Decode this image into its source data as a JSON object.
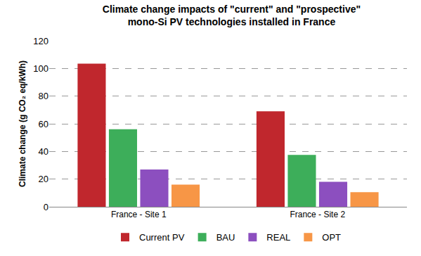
{
  "chart_data": {
    "type": "bar",
    "title": "Climate change impacts of \"current\" and \"prospective\"\nmono-Si PV technologies installed in France",
    "y_label": "Climate change (g CO₂ eq/kWh)",
    "categories": [
      "France - Site 1",
      "France - Site 2"
    ],
    "series": [
      {
        "name": "Current PV",
        "color": "#c0272d",
        "values": [
          103.5,
          69
        ]
      },
      {
        "name": "BAU",
        "color": "#3dae5a",
        "values": [
          56,
          37.5
        ]
      },
      {
        "name": "REAL",
        "color": "#8c4fbf",
        "values": [
          27,
          18
        ]
      },
      {
        "name": "OPT",
        "color": "#f79646",
        "values": [
          16,
          10.5
        ]
      }
    ],
    "ylim": [
      0,
      120
    ],
    "yticks": [
      0,
      20,
      40,
      60,
      80,
      100,
      120
    ],
    "grid": true,
    "legend": "bottom"
  }
}
